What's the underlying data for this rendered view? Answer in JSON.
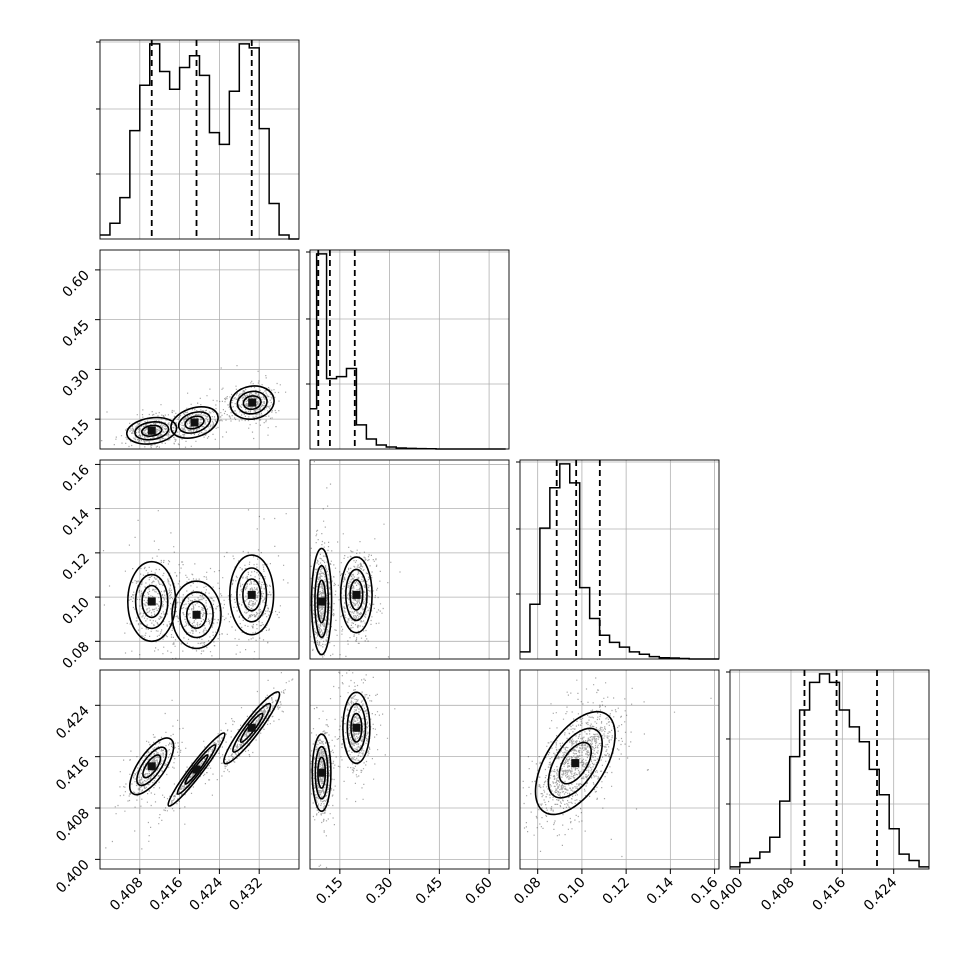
{
  "chart_data": {
    "type": "corner",
    "grid": true,
    "parameters": [
      {
        "range": [
          0.4,
          0.44
        ],
        "ticks": [
          "0.408",
          "0.416",
          "0.424",
          "0.432"
        ],
        "tick_values": [
          0.408,
          0.416,
          0.424,
          0.432
        ]
      },
      {
        "range": [
          0.06,
          0.66
        ],
        "ticks": [
          "0.15",
          "0.30",
          "0.45",
          "0.60"
        ],
        "tick_values": [
          0.15,
          0.3,
          0.45,
          0.6
        ]
      },
      {
        "range": [
          0.072,
          0.162
        ],
        "ticks": [
          "0.08",
          "0.10",
          "0.12",
          "0.14",
          "0.16"
        ],
        "tick_values": [
          0.08,
          0.1,
          0.12,
          0.14,
          0.16
        ]
      },
      {
        "range": [
          0.3985,
          0.4295
        ],
        "ticks": [
          "0.400",
          "0.408",
          "0.416",
          "0.424"
        ],
        "tick_values": [
          0.4,
          0.408,
          0.416,
          0.424
        ]
      }
    ],
    "histograms": [
      {
        "param": 0,
        "edges_start": 0.4,
        "bin_width": 0.002,
        "counts": [
          2,
          8,
          21,
          55,
          78,
          99,
          85,
          76,
          87,
          93,
          83,
          54,
          48,
          75,
          99,
          97,
          56,
          18,
          2,
          0
        ],
        "quantiles": [
          0.4104,
          0.4194,
          0.4305
        ]
      },
      {
        "param": 1,
        "edges_start": 0.05,
        "bin_width": 0.03,
        "counts": [
          20,
          97,
          35,
          36,
          40,
          12,
          5,
          2,
          1,
          0.5,
          0.3,
          0.2,
          0.1,
          0,
          0,
          0,
          0,
          0,
          0,
          0
        ],
        "quantiles": [
          0.085,
          0.12,
          0.195
        ]
      },
      {
        "param": 2,
        "edges_start": 0.072,
        "bin_width": 0.0045,
        "counts": [
          3,
          23,
          55,
          72,
          82,
          74,
          30,
          17,
          10,
          7,
          5,
          3,
          2,
          1,
          0.5,
          0.4,
          0.2,
          0,
          0,
          0
        ],
        "quantiles": [
          0.0886,
          0.0974,
          0.1081
        ]
      },
      {
        "param": 3,
        "edges_start": 0.3985,
        "bin_width": 0.00155,
        "counts": [
          1,
          3,
          5,
          8,
          15,
          32,
          53,
          75,
          88,
          92,
          88,
          75,
          67,
          60,
          47,
          35,
          19,
          7,
          4,
          1
        ],
        "quantiles": [
          0.4101,
          0.4151,
          0.4214
        ]
      }
    ],
    "density_panels": [
      {
        "x_param": 0,
        "y_param": 1,
        "modes": [
          {
            "x": 0.4104,
            "y": 0.115,
            "sx": 0.0025,
            "sy": 0.02,
            "rho": 0.2,
            "w": 1
          },
          {
            "x": 0.419,
            "y": 0.14,
            "sx": 0.0025,
            "sy": 0.025,
            "rho": 0.3,
            "w": 0.9
          },
          {
            "x": 0.4306,
            "y": 0.2,
            "sx": 0.0022,
            "sy": 0.025,
            "rho": 0.1,
            "w": 1
          }
        ]
      },
      {
        "x_param": 0,
        "y_param": 2,
        "modes": [
          {
            "x": 0.4104,
            "y": 0.098,
            "sx": 0.0024,
            "sy": 0.009,
            "rho": 0,
            "w": 1
          },
          {
            "x": 0.4194,
            "y": 0.092,
            "sx": 0.0026,
            "sy": 0.008,
            "rho": 0,
            "w": 0.9
          },
          {
            "x": 0.4305,
            "y": 0.101,
            "sx": 0.0022,
            "sy": 0.009,
            "rho": 0,
            "w": 1
          }
        ]
      },
      {
        "x_param": 0,
        "y_param": 3,
        "modes": [
          {
            "x": 0.4104,
            "y": 0.4145,
            "sx": 0.0022,
            "sy": 0.0022,
            "rho": 0.7,
            "w": 1
          },
          {
            "x": 0.4194,
            "y": 0.414,
            "sx": 0.003,
            "sy": 0.003,
            "rho": 0.96,
            "w": 0.9
          },
          {
            "x": 0.4305,
            "y": 0.4205,
            "sx": 0.0028,
            "sy": 0.0028,
            "rho": 0.93,
            "w": 1
          }
        ]
      },
      {
        "x_param": 1,
        "y_param": 2,
        "modes": [
          {
            "x": 0.095,
            "y": 0.098,
            "sx": 0.015,
            "sy": 0.012,
            "rho": 0,
            "w": 1
          },
          {
            "x": 0.2,
            "y": 0.101,
            "sx": 0.025,
            "sy": 0.009,
            "rho": 0,
            "w": 0.9
          }
        ]
      },
      {
        "x_param": 1,
        "y_param": 3,
        "modes": [
          {
            "x": 0.095,
            "y": 0.4135,
            "sx": 0.014,
            "sy": 0.003,
            "rho": 0,
            "w": 1
          },
          {
            "x": 0.2,
            "y": 0.4205,
            "sx": 0.022,
            "sy": 0.003,
            "rho": 0,
            "w": 0.85
          }
        ]
      },
      {
        "x_param": 2,
        "y_param": 3,
        "modes": [
          {
            "x": 0.097,
            "y": 0.415,
            "sx": 0.009,
            "sy": 0.004,
            "rho": 0.55,
            "w": 1
          }
        ]
      }
    ]
  }
}
